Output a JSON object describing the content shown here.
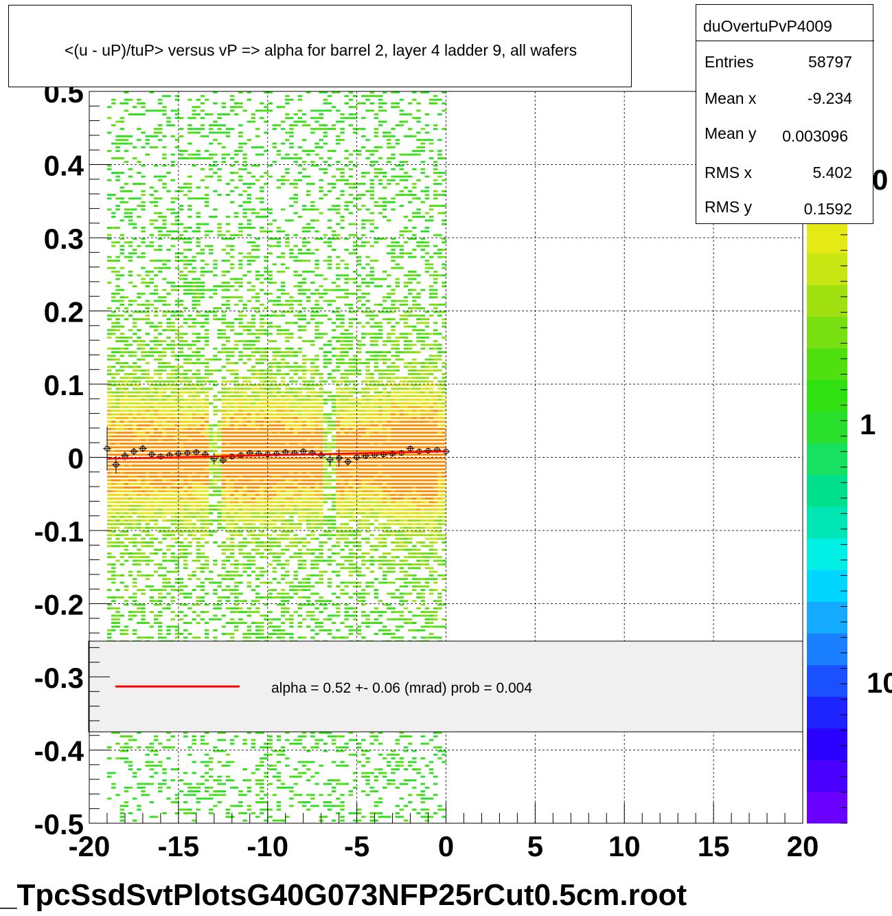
{
  "chart_data": {
    "type": "heatmap",
    "title": "<(u - uP)/tuP> versus   vP => alpha for barrel 2, layer 4 ladder 9, all wafers",
    "xlim": [
      -20,
      20
    ],
    "ylim": [
      -0.5,
      0.5
    ],
    "x_ticks": [
      "-20",
      "-15",
      "-10",
      "-5",
      "0",
      "5",
      "10",
      "15",
      "20"
    ],
    "y_ticks": [
      "-0.5",
      "-0.4",
      "-0.3",
      "-0.2",
      "-0.1",
      "0",
      "0.1",
      "0.2",
      "0.3",
      "0.4",
      "0.5"
    ],
    "z_scale": "log",
    "z_tick_labels": [
      "10",
      "1",
      "0"
    ],
    "palette": [
      "#6a00ff",
      "#4a00ff",
      "#2a00ff",
      "#1e24ff",
      "#1a50ff",
      "#1a80ff",
      "#14aaff",
      "#00d6ff",
      "#00f0e6",
      "#00e6b4",
      "#00e08c",
      "#18e060",
      "#28e02c",
      "#30e010",
      "#50e010",
      "#78e010",
      "#a0e010",
      "#c8e614",
      "#e6ea14",
      "#f0d800",
      "#f8b400",
      "#ff8c00"
    ],
    "data_x_range": [
      -19.0,
      0.0
    ],
    "gap_columns_x": [
      -13.0,
      -6.5
    ],
    "profile": {
      "x": [
        -19.0,
        -18.5,
        -18.0,
        -17.5,
        -17.0,
        -16.5,
        -16.0,
        -15.5,
        -15.0,
        -14.5,
        -14.0,
        -13.5,
        -13.0,
        -12.5,
        -12.0,
        -11.5,
        -11.0,
        -10.5,
        -10.0,
        -9.5,
        -9.0,
        -8.5,
        -8.0,
        -7.5,
        -7.0,
        -6.5,
        -6.0,
        -5.5,
        -5.0,
        -4.5,
        -4.0,
        -3.5,
        -3.0,
        -2.5,
        -2.0,
        -1.5,
        -1.0,
        -0.5,
        0.0
      ],
      "y": [
        0.012,
        -0.01,
        0.002,
        0.008,
        0.012,
        0.004,
        0.001,
        0.003,
        0.005,
        0.006,
        0.007,
        0.004,
        -0.002,
        -0.004,
        0.001,
        0.003,
        0.006,
        0.005,
        0.004,
        0.005,
        0.007,
        0.006,
        0.008,
        0.006,
        0.003,
        -0.003,
        -0.001,
        -0.006,
        0.0,
        0.002,
        0.003,
        0.004,
        0.005,
        0.006,
        0.012,
        0.008,
        0.009,
        0.01,
        0.008
      ],
      "yerr": [
        0.03,
        0.012,
        0.006,
        0.005,
        0.005,
        0.004,
        0.004,
        0.004,
        0.004,
        0.004,
        0.004,
        0.005,
        0.008,
        0.005,
        0.004,
        0.004,
        0.004,
        0.004,
        0.004,
        0.004,
        0.004,
        0.004,
        0.004,
        0.004,
        0.005,
        0.008,
        0.012,
        0.006,
        0.005,
        0.004,
        0.004,
        0.004,
        0.004,
        0.004,
        0.004,
        0.004,
        0.004,
        0.004,
        0.004
      ]
    },
    "fit_line": {
      "x": [
        -19.0,
        0.0
      ],
      "y": [
        -0.002,
        0.008
      ],
      "color": "#ff0000"
    },
    "legend": {
      "placement": "bottom",
      "entries": [
        {
          "label": "alpha =    0.52 +-  0.06 (mrad) prob = 0.004",
          "color": "#ff0000"
        }
      ]
    },
    "stats": {
      "name": "duOvertuPvP4009",
      "rows": [
        {
          "label": "Entries",
          "value": "58797"
        },
        {
          "label": "Mean x",
          "value": "-9.234"
        },
        {
          "label": "Mean y",
          "value": "0.003096"
        },
        {
          "label": "RMS x",
          "value": "5.402"
        },
        {
          "label": "RMS y",
          "value": "0.1592"
        }
      ]
    },
    "grid": true,
    "footer": "_TpcSsdSvtPlotsG40G073NFP25rCut0.5cm.root"
  }
}
